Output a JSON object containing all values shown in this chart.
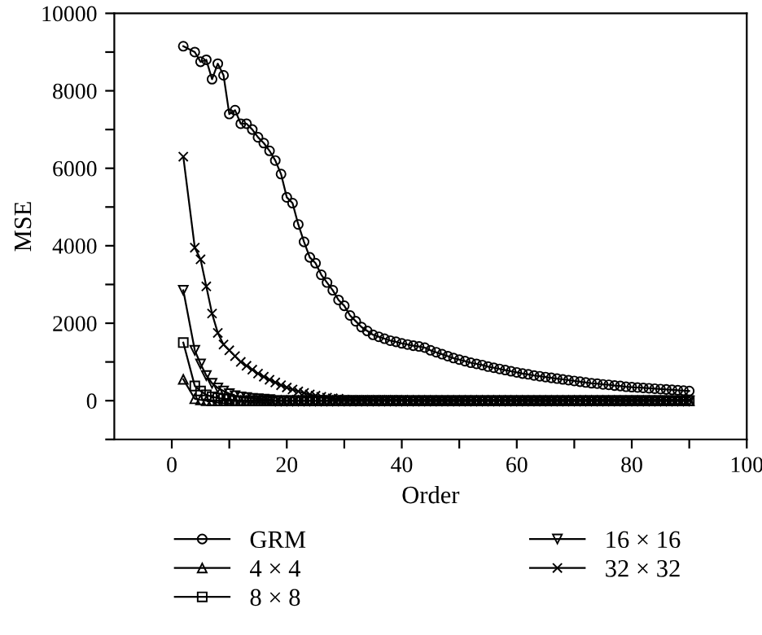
{
  "chart_data": {
    "type": "line",
    "xlabel": "Order",
    "ylabel": "MSE",
    "x": [
      2,
      4,
      5,
      6,
      7,
      8,
      9,
      10,
      11,
      12,
      13,
      14,
      15,
      16,
      17,
      18,
      19,
      20,
      21,
      22,
      23,
      24,
      25,
      26,
      27,
      28,
      29,
      30,
      31,
      32,
      33,
      34,
      35,
      36,
      37,
      38,
      39,
      40,
      41,
      42,
      43,
      44,
      45,
      46,
      47,
      48,
      49,
      50,
      51,
      52,
      53,
      54,
      55,
      56,
      57,
      58,
      59,
      60,
      61,
      62,
      63,
      64,
      65,
      66,
      67,
      68,
      69,
      70,
      71,
      72,
      73,
      74,
      75,
      76,
      77,
      78,
      79,
      80,
      81,
      82,
      83,
      84,
      85,
      86,
      87,
      88,
      89,
      90
    ],
    "series": [
      {
        "name": "GRM",
        "color": "#000000",
        "marker": "circle",
        "values": [
          9150,
          9000,
          8750,
          8800,
          8300,
          8700,
          8400,
          7400,
          7500,
          7150,
          7150,
          7000,
          6800,
          6650,
          6450,
          6200,
          5850,
          5250,
          5100,
          4550,
          4100,
          3700,
          3550,
          3250,
          3050,
          2850,
          2600,
          2450,
          2200,
          2050,
          1900,
          1800,
          1700,
          1650,
          1600,
          1550,
          1520,
          1480,
          1450,
          1420,
          1400,
          1370,
          1300,
          1250,
          1200,
          1150,
          1100,
          1060,
          1020,
          980,
          950,
          920,
          880,
          850,
          820,
          790,
          760,
          730,
          700,
          680,
          650,
          630,
          610,
          590,
          570,
          550,
          530,
          510,
          490,
          470,
          450,
          440,
          420,
          410,
          390,
          380,
          360,
          350,
          340,
          330,
          320,
          310,
          300,
          290,
          280,
          270,
          260,
          250
        ]
      },
      {
        "name": "4 × 4",
        "color": "#000000",
        "marker": "triangle",
        "values": [
          550,
          50,
          20,
          0,
          0,
          0,
          0,
          0,
          0,
          0,
          0,
          0,
          0,
          0,
          0,
          0,
          0,
          0,
          0,
          0,
          0,
          0,
          0,
          0,
          0,
          0,
          0,
          0,
          0,
          0,
          0,
          0,
          0,
          0,
          0,
          0,
          0,
          0,
          0,
          0,
          0,
          0,
          0,
          0,
          0,
          0,
          0,
          0,
          0,
          0,
          0,
          0,
          0,
          0,
          0,
          0,
          0,
          0,
          0,
          0,
          0,
          0,
          0,
          0,
          0,
          0,
          0,
          0,
          0,
          0,
          0,
          0,
          0,
          0,
          0,
          0,
          0,
          0,
          0,
          0,
          0,
          0,
          0,
          0,
          0,
          0,
          0,
          0
        ]
      },
      {
        "name": "8 × 8",
        "color": "#000000",
        "marker": "square",
        "values": [
          1500,
          380,
          250,
          150,
          100,
          70,
          50,
          40,
          0,
          0,
          0,
          0,
          0,
          0,
          0,
          0,
          0,
          0,
          0,
          0,
          0,
          0,
          0,
          0,
          0,
          0,
          0,
          0,
          0,
          0,
          0,
          0,
          0,
          0,
          0,
          0,
          0,
          0,
          0,
          0,
          0,
          0,
          0,
          0,
          0,
          0,
          0,
          0,
          0,
          0,
          0,
          0,
          0,
          0,
          0,
          0,
          0,
          0,
          0,
          0,
          0,
          0,
          0,
          0,
          0,
          0,
          0,
          0,
          0,
          0,
          0,
          0,
          0,
          0,
          0,
          0,
          0,
          0,
          0,
          0,
          0,
          0,
          0,
          0,
          0,
          0,
          0,
          0
        ]
      },
      {
        "name": "16 × 16",
        "color": "#000000",
        "marker": "triangle_down",
        "values": [
          2850,
          1300,
          950,
          650,
          450,
          330,
          250,
          180,
          130,
          100,
          80,
          60,
          50,
          40,
          30,
          0,
          0,
          0,
          0,
          0,
          0,
          0,
          0,
          0,
          0,
          0,
          0,
          0,
          0,
          0,
          0,
          0,
          0,
          0,
          0,
          0,
          0,
          0,
          0,
          0,
          0,
          0,
          0,
          0,
          0,
          0,
          0,
          0,
          0,
          0,
          0,
          0,
          0,
          0,
          0,
          0,
          0,
          0,
          0,
          0,
          0,
          0,
          0,
          0,
          0,
          0,
          0,
          0,
          0,
          0,
          0,
          0,
          0,
          0,
          0,
          0,
          0,
          0,
          0,
          0,
          0,
          0,
          0,
          0,
          0,
          0,
          0,
          0
        ]
      },
      {
        "name": "32 × 32",
        "color": "#000000",
        "marker": "cross",
        "values": [
          6300,
          3950,
          3650,
          2950,
          2250,
          1750,
          1450,
          1300,
          1150,
          1000,
          900,
          800,
          700,
          620,
          540,
          470,
          400,
          340,
          290,
          240,
          200,
          160,
          130,
          100,
          80,
          60,
          50,
          30,
          20,
          20,
          20,
          20,
          20,
          20,
          20,
          20,
          20,
          20,
          10,
          10,
          10,
          10,
          10,
          10,
          10,
          10,
          10,
          10,
          10,
          10,
          10,
          10,
          10,
          10,
          10,
          10,
          10,
          10,
          10,
          10,
          10,
          10,
          10,
          10,
          10,
          10,
          10,
          10,
          10,
          10,
          10,
          10,
          10,
          10,
          10,
          10,
          10,
          10,
          10,
          10,
          10,
          10,
          10,
          10,
          10,
          10,
          10,
          10
        ]
      }
    ],
    "xlim": [
      -10,
      100
    ],
    "xticks": [
      0,
      {
        "value": 10,
        "label": null
      },
      20,
      {
        "value": 30,
        "label": null
      },
      40,
      {
        "value": 50,
        "label": null
      },
      60,
      {
        "value": 70,
        "label": null
      },
      80,
      {
        "value": 90,
        "label": null
      },
      100
    ],
    "ylim": [
      -1000,
      10000
    ],
    "yticks": [
      {
        "value": -1000,
        "label": null
      },
      0,
      {
        "value": 1000,
        "label": null
      },
      2000,
      {
        "value": 3000,
        "label": null
      },
      4000,
      {
        "value": 5000,
        "label": null
      },
      6000,
      {
        "value": 7000,
        "label": null
      },
      8000,
      {
        "value": 9000,
        "label": null
      },
      10000
    ],
    "grid": false,
    "legend": "bottom",
    "line_style": "solid"
  }
}
